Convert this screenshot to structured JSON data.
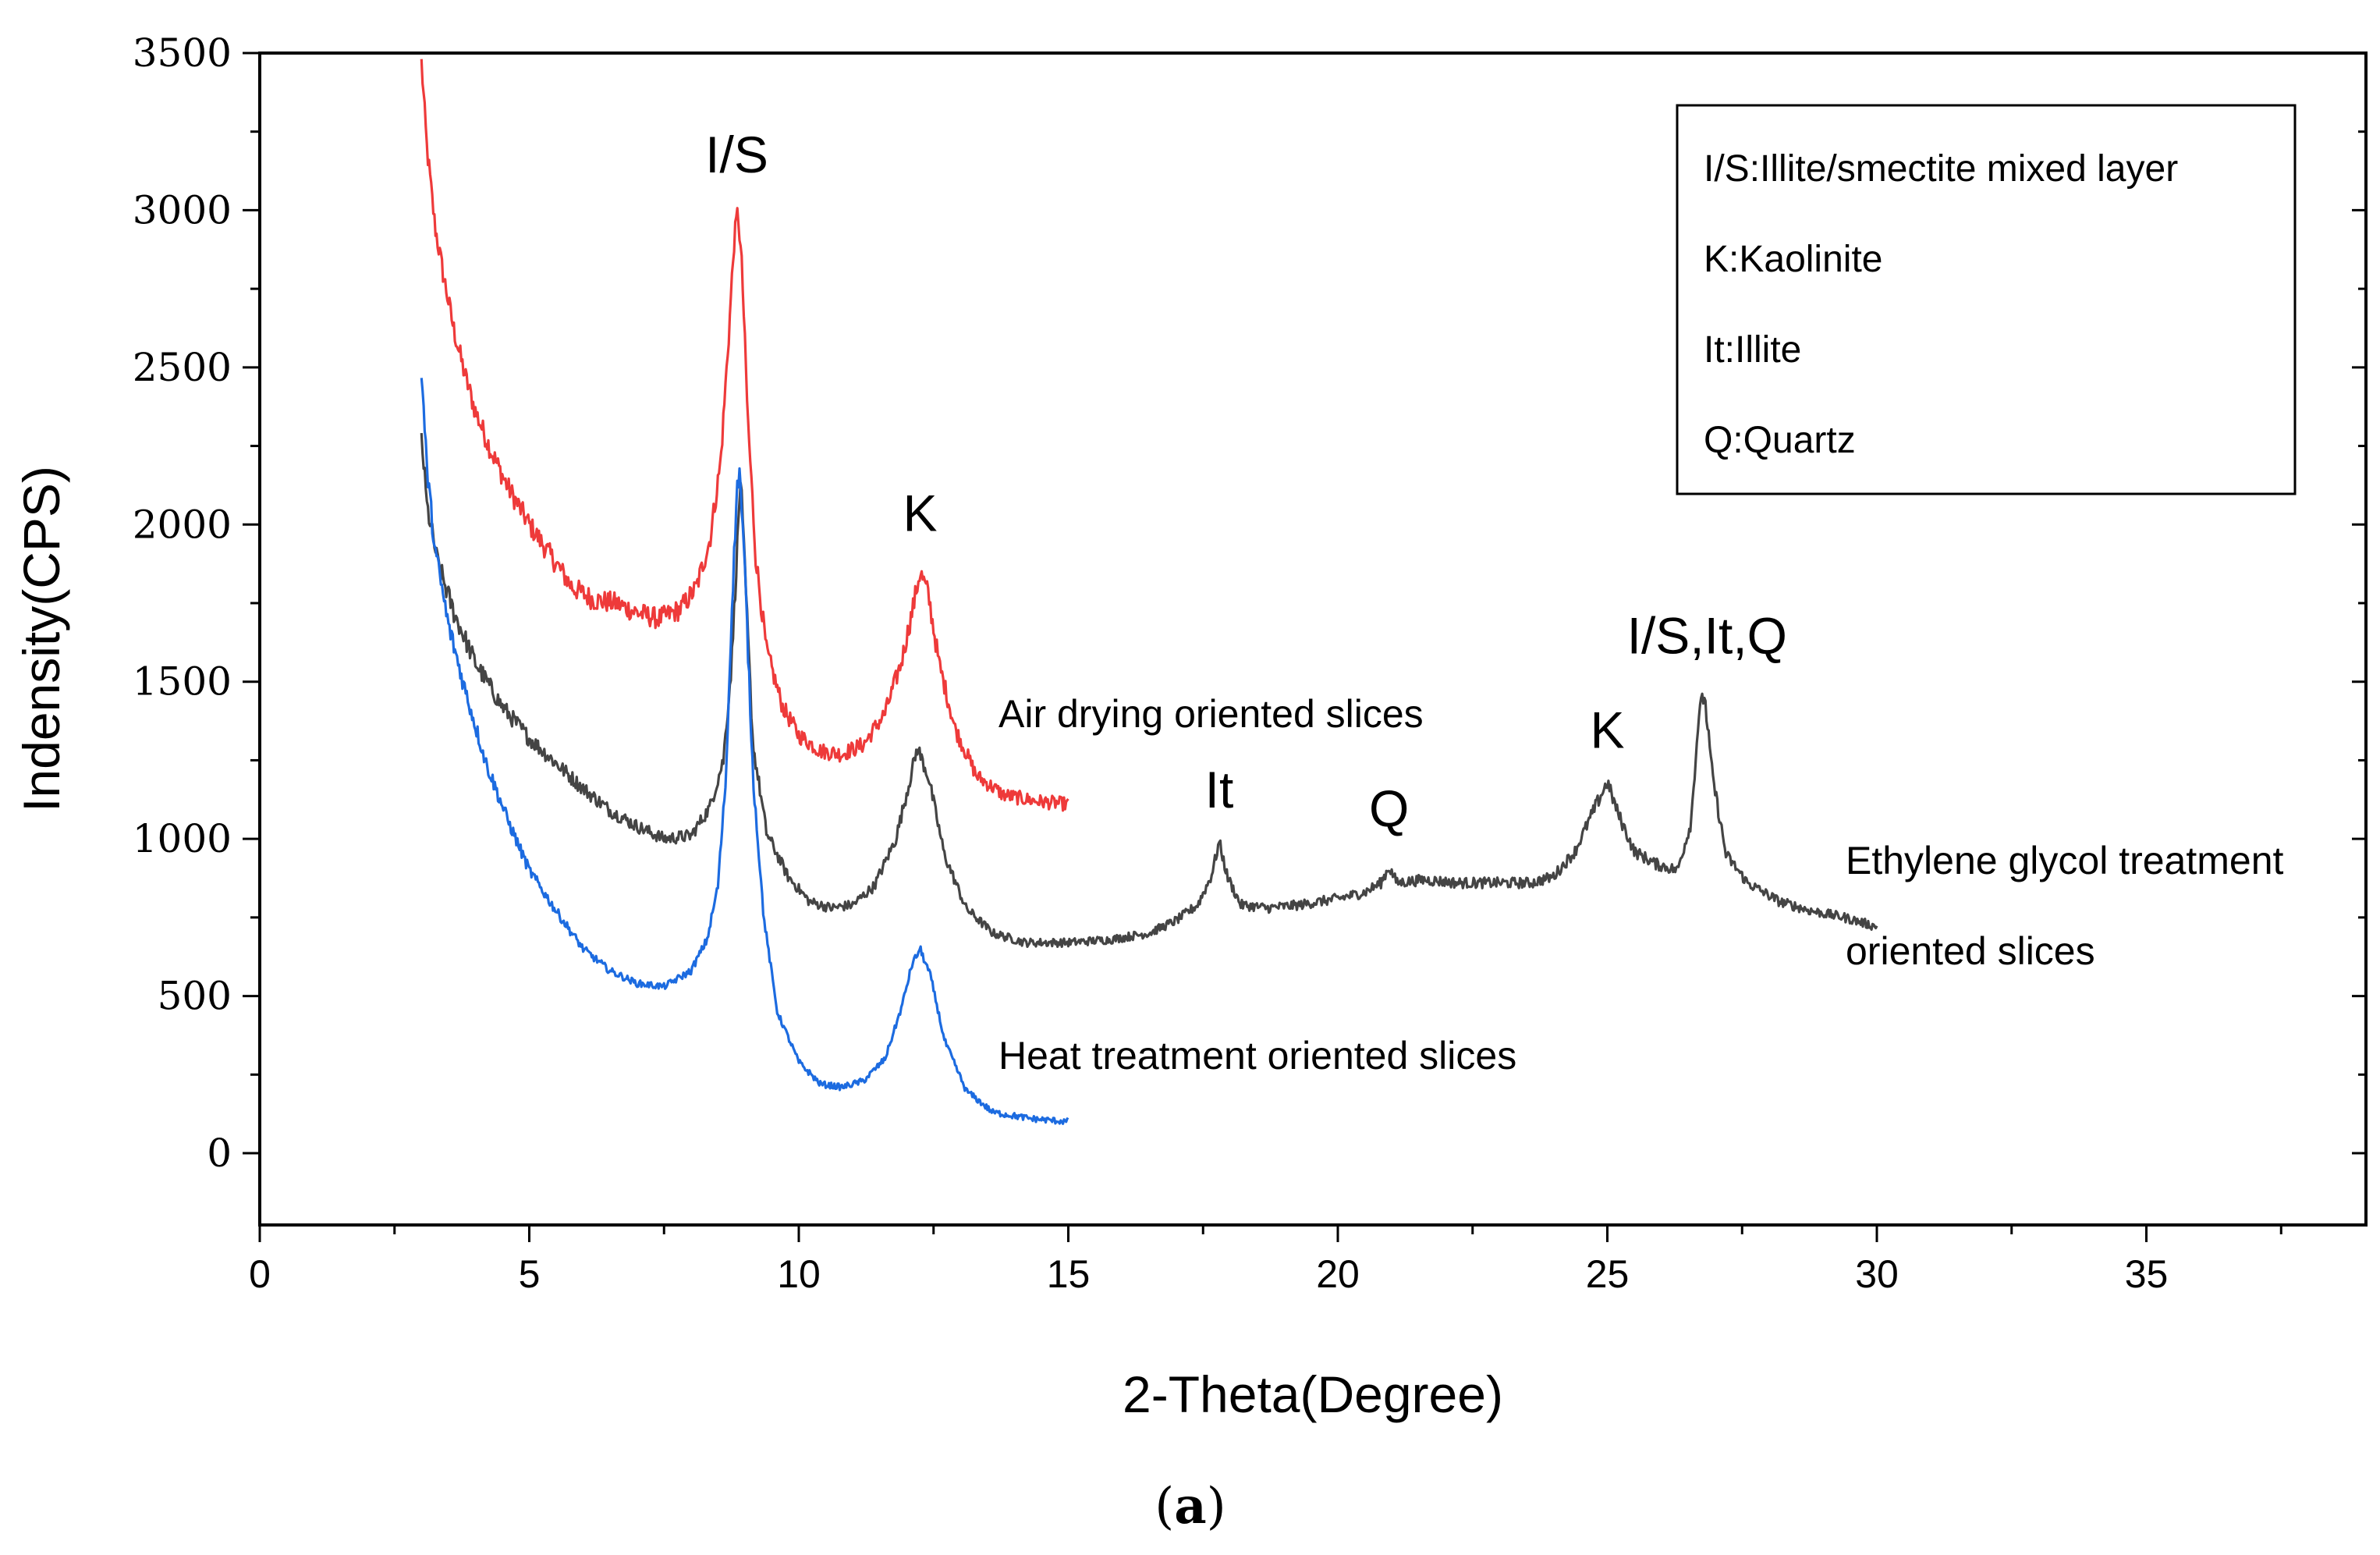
{
  "caption": {
    "open": "(",
    "letter": "a",
    "close": ")"
  },
  "legend": {
    "entries": [
      "I/S:Illite/smectite mixed layer",
      "K:Kaolinite",
      "It:Illite",
      "Q:Quartz"
    ]
  },
  "chart_data": {
    "type": "line",
    "title": "",
    "xlabel": "2-Theta(Degree)",
    "ylabel": "Indensity(CPS)",
    "xlim": [
      0,
      39
    ],
    "ylim": [
      -250,
      3500
    ],
    "x_ticks": [
      0,
      5,
      10,
      15,
      20,
      25,
      30,
      35
    ],
    "y_ticks": [
      0,
      500,
      1000,
      1500,
      2000,
      2500,
      3000,
      3500
    ],
    "series": [
      {
        "name": "Air drying oriented slices",
        "label": "Air drying oriented slices",
        "color": "#ee3a3a",
        "x_range": [
          3,
          15
        ],
        "points": [
          [
            3.0,
            3470
          ],
          [
            3.1,
            3200
          ],
          [
            3.25,
            2950
          ],
          [
            3.4,
            2800
          ],
          [
            3.6,
            2620
          ],
          [
            3.8,
            2480
          ],
          [
            4.0,
            2360
          ],
          [
            4.3,
            2230
          ],
          [
            4.6,
            2120
          ],
          [
            5.0,
            2000
          ],
          [
            5.4,
            1900
          ],
          [
            5.8,
            1800
          ],
          [
            6.2,
            1760
          ],
          [
            6.6,
            1750
          ],
          [
            7.0,
            1720
          ],
          [
            7.4,
            1700
          ],
          [
            7.8,
            1730
          ],
          [
            8.1,
            1800
          ],
          [
            8.35,
            1950
          ],
          [
            8.55,
            2200
          ],
          [
            8.7,
            2600
          ],
          [
            8.8,
            2900
          ],
          [
            8.87,
            3000
          ],
          [
            8.95,
            2800
          ],
          [
            9.05,
            2350
          ],
          [
            9.2,
            1900
          ],
          [
            9.4,
            1600
          ],
          [
            9.7,
            1420
          ],
          [
            10.0,
            1330
          ],
          [
            10.4,
            1280
          ],
          [
            10.8,
            1270
          ],
          [
            11.2,
            1300
          ],
          [
            11.6,
            1400
          ],
          [
            11.9,
            1560
          ],
          [
            12.1,
            1720
          ],
          [
            12.25,
            1850
          ],
          [
            12.4,
            1780
          ],
          [
            12.6,
            1560
          ],
          [
            12.9,
            1350
          ],
          [
            13.3,
            1200
          ],
          [
            13.8,
            1140
          ],
          [
            14.4,
            1120
          ],
          [
            15.0,
            1110
          ]
        ]
      },
      {
        "name": "Ethylene glycol treatment oriented slices",
        "label_line1": "Ethylene glycol treatment",
        "label_line2": "oriented slices",
        "color": "#444444",
        "x_range": [
          3,
          30
        ],
        "points": [
          [
            3.0,
            2280
          ],
          [
            3.1,
            2060
          ],
          [
            3.3,
            1880
          ],
          [
            3.6,
            1720
          ],
          [
            4.0,
            1560
          ],
          [
            4.5,
            1420
          ],
          [
            5.0,
            1320
          ],
          [
            5.5,
            1240
          ],
          [
            6.0,
            1160
          ],
          [
            6.5,
            1090
          ],
          [
            7.0,
            1040
          ],
          [
            7.5,
            1000
          ],
          [
            8.0,
            1010
          ],
          [
            8.35,
            1100
          ],
          [
            8.6,
            1250
          ],
          [
            8.75,
            1550
          ],
          [
            8.85,
            1900
          ],
          [
            8.92,
            2150
          ],
          [
            9.0,
            1850
          ],
          [
            9.15,
            1300
          ],
          [
            9.4,
            1020
          ],
          [
            9.8,
            880
          ],
          [
            10.2,
            800
          ],
          [
            10.6,
            780
          ],
          [
            11.0,
            790
          ],
          [
            11.4,
            850
          ],
          [
            11.8,
            1000
          ],
          [
            12.05,
            1180
          ],
          [
            12.2,
            1290
          ],
          [
            12.4,
            1200
          ],
          [
            12.7,
            950
          ],
          [
            13.1,
            780
          ],
          [
            13.6,
            700
          ],
          [
            14.2,
            670
          ],
          [
            15.0,
            670
          ],
          [
            15.8,
            680
          ],
          [
            16.5,
            700
          ],
          [
            17.0,
            740
          ],
          [
            17.4,
            790
          ],
          [
            17.65,
            880
          ],
          [
            17.8,
            990
          ],
          [
            17.95,
            880
          ],
          [
            18.2,
            790
          ],
          [
            18.7,
            780
          ],
          [
            19.3,
            790
          ],
          [
            20.0,
            810
          ],
          [
            20.5,
            830
          ],
          [
            20.8,
            860
          ],
          [
            20.95,
            910
          ],
          [
            21.1,
            860
          ],
          [
            21.6,
            870
          ],
          [
            22.2,
            860
          ],
          [
            23.0,
            860
          ],
          [
            23.6,
            860
          ],
          [
            24.0,
            880
          ],
          [
            24.4,
            960
          ],
          [
            24.8,
            1110
          ],
          [
            25.0,
            1180
          ],
          [
            25.2,
            1080
          ],
          [
            25.5,
            960
          ],
          [
            25.9,
            920
          ],
          [
            26.3,
            900
          ],
          [
            26.55,
            1050
          ],
          [
            26.7,
            1400
          ],
          [
            26.8,
            1460
          ],
          [
            26.95,
            1200
          ],
          [
            27.2,
            950
          ],
          [
            27.6,
            860
          ],
          [
            28.2,
            800
          ],
          [
            28.8,
            770
          ],
          [
            29.4,
            750
          ],
          [
            30.0,
            720
          ]
        ]
      },
      {
        "name": "Heat treatment oriented slices",
        "label": "Heat treatment oriented slices",
        "color": "#1c6be0",
        "x_range": [
          3,
          15
        ],
        "points": [
          [
            3.0,
            2490
          ],
          [
            3.1,
            2180
          ],
          [
            3.25,
            1920
          ],
          [
            3.5,
            1680
          ],
          [
            3.8,
            1480
          ],
          [
            4.2,
            1240
          ],
          [
            4.6,
            1060
          ],
          [
            5.0,
            900
          ],
          [
            5.5,
            770
          ],
          [
            6.0,
            650
          ],
          [
            6.5,
            580
          ],
          [
            7.0,
            540
          ],
          [
            7.5,
            530
          ],
          [
            8.0,
            580
          ],
          [
            8.3,
            680
          ],
          [
            8.5,
            850
          ],
          [
            8.65,
            1200
          ],
          [
            8.75,
            1700
          ],
          [
            8.85,
            2100
          ],
          [
            8.9,
            2180
          ],
          [
            9.0,
            1850
          ],
          [
            9.15,
            1200
          ],
          [
            9.35,
            750
          ],
          [
            9.6,
            450
          ],
          [
            10.0,
            290
          ],
          [
            10.4,
            220
          ],
          [
            10.8,
            210
          ],
          [
            11.2,
            230
          ],
          [
            11.6,
            300
          ],
          [
            11.9,
            460
          ],
          [
            12.1,
            600
          ],
          [
            12.25,
            650
          ],
          [
            12.45,
            560
          ],
          [
            12.7,
            360
          ],
          [
            13.1,
            200
          ],
          [
            13.6,
            130
          ],
          [
            14.3,
            110
          ],
          [
            15.0,
            100
          ]
        ]
      }
    ],
    "peak_annotations": [
      {
        "text": "I/S",
        "x": 8.85,
        "y": 3120
      },
      {
        "text": "K",
        "x": 12.25,
        "y": 1980
      },
      {
        "text": "It",
        "x": 17.8,
        "y": 1100
      },
      {
        "text": "Q",
        "x": 20.95,
        "y": 1040
      },
      {
        "text": "K",
        "x": 25.0,
        "y": 1290
      },
      {
        "text": "I/S,It,Q",
        "x": 26.85,
        "y": 1590
      }
    ],
    "legend_position": "top-right",
    "grid": false
  }
}
